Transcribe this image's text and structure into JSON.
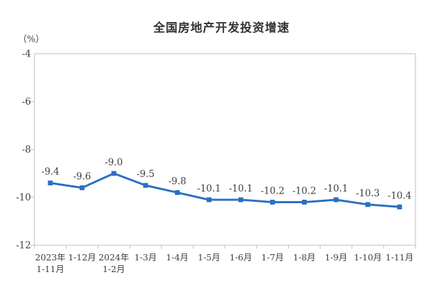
{
  "header": {
    "title": "全国房地产开发投资增速",
    "unit_label": "（%）"
  },
  "chart_data": {
    "type": "line",
    "title": "全国房地产开发投资增速",
    "ylabel": "（%）",
    "xlabel": "",
    "categories": [
      "2023年1-11月",
      "1-12月",
      "2024年1-2月",
      "1-3月",
      "1-4月",
      "1-5月",
      "1-6月",
      "1-7月",
      "1-8月",
      "1-9月",
      "1-10月",
      "1-11月"
    ],
    "category_lines": [
      [
        "2023年",
        "1-11月"
      ],
      [
        "1-12月"
      ],
      [
        "2024年",
        "1-2月"
      ],
      [
        "1-3月"
      ],
      [
        "1-4月"
      ],
      [
        "1-5月"
      ],
      [
        "1-6月"
      ],
      [
        "1-7月"
      ],
      [
        "1-8月"
      ],
      [
        "1-9月"
      ],
      [
        "1-10月"
      ],
      [
        "1-11月"
      ]
    ],
    "values": [
      -9.4,
      -9.6,
      -9.0,
      -9.5,
      -9.8,
      -10.1,
      -10.1,
      -10.2,
      -10.2,
      -10.1,
      -10.3,
      -10.4
    ],
    "data_labels": [
      "-9.4",
      "-9.6",
      "-9.0",
      "-9.5",
      "-9.8",
      "-10.1",
      "-10.1",
      "-10.2",
      "-10.2",
      "-10.1",
      "-10.3",
      "-10.4"
    ],
    "ylim": [
      -12,
      -4
    ],
    "yticks": [
      -4,
      -6,
      -8,
      -10,
      -12
    ],
    "ytick_labels": [
      "-4",
      "-6",
      "-8",
      "-10",
      "-12"
    ],
    "grid": false,
    "legend": "none",
    "colors": {
      "line": "#2b6fc2",
      "marker": "#2b6fc2",
      "axis": "#c9c9c9",
      "tick": "#c9c9c9",
      "title_text": "#333333",
      "axis_text": "#3d3d3d",
      "label_text": "#3d3d3d"
    }
  }
}
